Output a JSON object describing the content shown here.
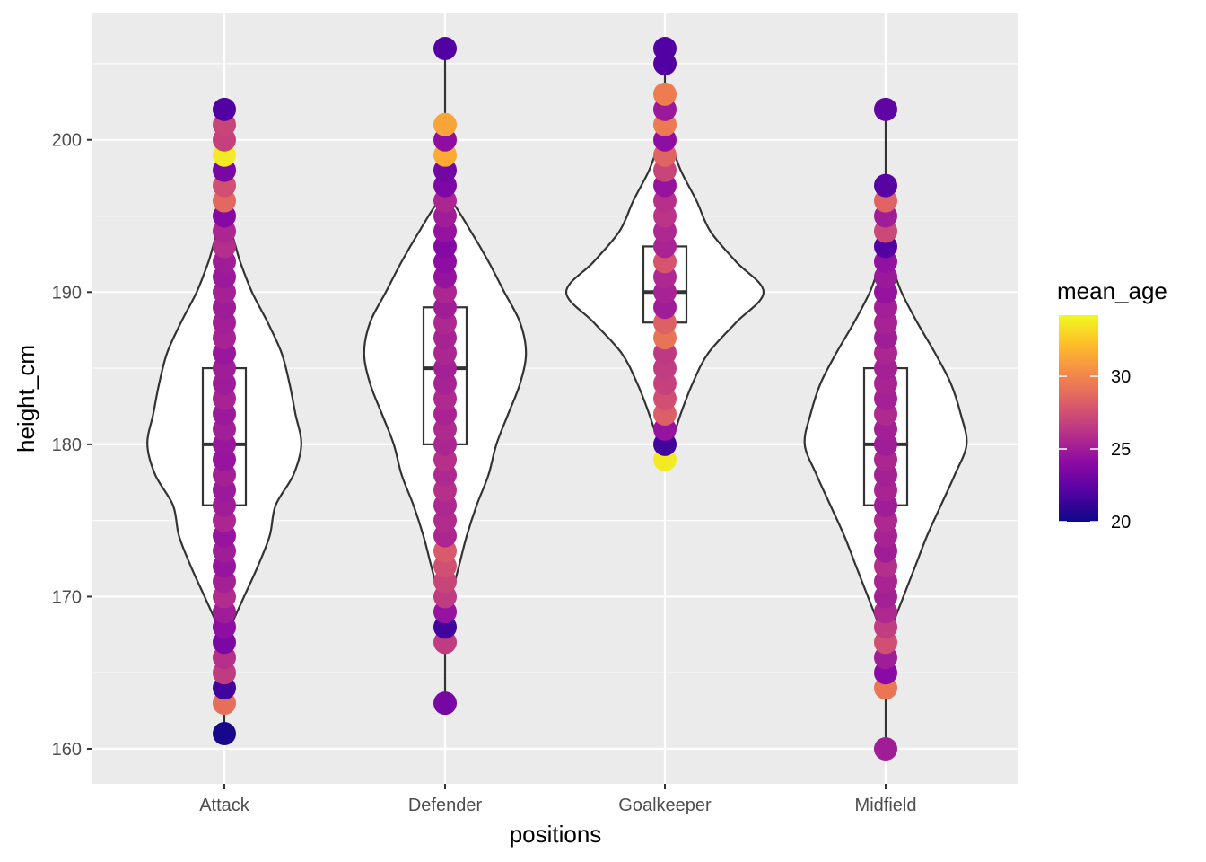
{
  "chart_data": {
    "type": "violin",
    "title": "",
    "xlabel": "positions",
    "ylabel": "height_cm",
    "categories": [
      "Attack",
      "Defender",
      "Goalkeeper",
      "Midfield"
    ],
    "ylim": [
      157.7,
      208.3
    ],
    "y_ticks": [
      160,
      170,
      180,
      190,
      200
    ],
    "grid": true,
    "box_stats": [
      {
        "category": "Attack",
        "min": 161,
        "q1": 176,
        "median": 180,
        "q3": 185,
        "max": 202
      },
      {
        "category": "Defender",
        "min": 163,
        "q1": 180,
        "median": 185,
        "q3": 189,
        "max": 206
      },
      {
        "category": "Goalkeeper",
        "min": 179,
        "q1": 188,
        "median": 190,
        "q3": 193,
        "max": 206
      },
      {
        "category": "Midfield",
        "min": 160,
        "q1": 176,
        "median": 180,
        "q3": 185,
        "max": 202
      }
    ],
    "violin_density": [
      {
        "category": "Attack",
        "heights": [
          168,
          170,
          172,
          174,
          176,
          178,
          180,
          182,
          184,
          186,
          188,
          190,
          192,
          194
        ],
        "density": [
          0.06,
          0.2,
          0.34,
          0.46,
          0.52,
          0.7,
          0.78,
          0.72,
          0.66,
          0.58,
          0.44,
          0.28,
          0.16,
          0.06
        ]
      },
      {
        "category": "Defender",
        "heights": [
          170,
          172,
          174,
          176,
          178,
          180,
          182,
          184,
          186,
          188,
          190,
          192,
          194,
          196
        ],
        "density": [
          0.06,
          0.14,
          0.22,
          0.32,
          0.44,
          0.52,
          0.64,
          0.76,
          0.82,
          0.76,
          0.6,
          0.44,
          0.26,
          0.06
        ]
      },
      {
        "category": "Goalkeeper",
        "heights": [
          180,
          182,
          184,
          186,
          188,
          190,
          192,
          194,
          196,
          198,
          200
        ],
        "density": [
          0.06,
          0.16,
          0.28,
          0.44,
          0.72,
          1.0,
          0.72,
          0.46,
          0.32,
          0.16,
          0.04
        ]
      },
      {
        "category": "Midfield",
        "heights": [
          168,
          170,
          172,
          174,
          176,
          178,
          180,
          182,
          184,
          186,
          188,
          190,
          192
        ],
        "density": [
          0.06,
          0.18,
          0.3,
          0.42,
          0.56,
          0.7,
          0.82,
          0.76,
          0.66,
          0.5,
          0.32,
          0.16,
          0.04
        ]
      }
    ],
    "points": [
      {
        "category": "Attack",
        "heights": [
          161,
          163,
          164,
          165,
          166,
          167,
          168,
          169,
          170,
          171,
          172,
          173,
          174,
          175,
          176,
          177,
          178,
          179,
          180,
          181,
          182,
          183,
          184,
          185,
          186,
          187,
          188,
          189,
          190,
          191,
          192,
          193,
          194,
          195,
          196,
          197,
          198,
          199,
          200,
          201,
          202
        ],
        "mean_age": [
          20.3,
          29,
          21.5,
          26.5,
          26,
          23.5,
          24.2,
          25,
          25.8,
          25.2,
          24.6,
          25,
          24.6,
          25.5,
          25,
          24.8,
          25.2,
          24.6,
          24.7,
          25.1,
          24.8,
          25.3,
          24.9,
          25,
          24.7,
          25.3,
          25.1,
          24.9,
          25.2,
          24.8,
          25,
          25.9,
          25.5,
          23.8,
          28.7,
          27.5,
          23.4,
          33.7,
          26.8,
          27,
          22
        ]
      },
      {
        "category": "Defender",
        "heights": [
          163,
          167,
          168,
          169,
          170,
          171,
          172,
          173,
          174,
          175,
          176,
          177,
          178,
          179,
          180,
          181,
          182,
          183,
          184,
          185,
          186,
          187,
          188,
          189,
          190,
          191,
          192,
          193,
          194,
          195,
          196,
          197,
          198,
          199,
          200,
          201,
          206
        ],
        "mean_age": [
          23.3,
          26.5,
          21.5,
          24.5,
          26.5,
          27,
          27.5,
          28,
          25.5,
          25.8,
          25.6,
          26,
          25.6,
          26,
          25.5,
          25.7,
          25.4,
          25.7,
          25.3,
          25.2,
          25.5,
          25.3,
          25.6,
          25,
          25.5,
          24.5,
          24.2,
          23.8,
          24.5,
          25,
          25.5,
          23.6,
          23.2,
          31.5,
          24.2,
          31.2,
          22
        ]
      },
      {
        "category": "Goalkeeper",
        "heights": [
          179,
          180,
          181,
          182,
          183,
          184,
          185,
          186,
          187,
          188,
          189,
          190,
          191,
          192,
          193,
          194,
          195,
          196,
          197,
          198,
          199,
          200,
          201,
          202,
          203,
          205,
          206
        ],
        "mean_age": [
          33.7,
          21.5,
          24.5,
          28.2,
          27.5,
          26.8,
          26.6,
          26.4,
          29.2,
          28.3,
          25,
          25.3,
          25.6,
          27.8,
          25.4,
          25.6,
          26.2,
          26,
          24.5,
          27,
          28.5,
          24.2,
          29.5,
          24.8,
          29.6,
          22,
          22
        ]
      },
      {
        "category": "Midfield",
        "heights": [
          160,
          164,
          165,
          166,
          167,
          168,
          169,
          170,
          171,
          172,
          173,
          174,
          175,
          176,
          177,
          178,
          179,
          180,
          181,
          182,
          183,
          184,
          185,
          186,
          187,
          188,
          189,
          190,
          191,
          192,
          193,
          194,
          195,
          196,
          197,
          202
        ],
        "mean_age": [
          25,
          29.3,
          24,
          25,
          27.5,
          26.6,
          25.6,
          25.2,
          25.4,
          25.9,
          25,
          25.3,
          25.6,
          25,
          25.4,
          25.2,
          25.5,
          25,
          25.1,
          25.7,
          25.2,
          25.4,
          25.2,
          25.5,
          25,
          25.3,
          25.1,
          24.5,
          24.8,
          24.4,
          22,
          27.2,
          25,
          28.5,
          22.2,
          22.5
        ]
      }
    ],
    "color_legend": {
      "title": "mean_age",
      "min": 20,
      "max": 34.2,
      "ticks": [
        20,
        25,
        30
      ]
    }
  },
  "style": {
    "panel_bg": "#ebebeb",
    "grid_color": "#ffffff",
    "violin_fill": "#ffffff",
    "line_color": "#333333",
    "tick_color": "#333333",
    "palette_stops": [
      "#0d0887",
      "#5302a3",
      "#8b0aa5",
      "#b83289",
      "#db5c68",
      "#f48849",
      "#febd2a",
      "#f0f921"
    ]
  }
}
